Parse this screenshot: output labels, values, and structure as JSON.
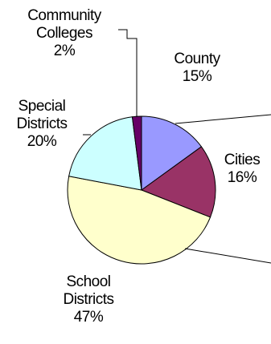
{
  "chart_data": {
    "type": "pie",
    "title": "",
    "slices": [
      {
        "name": "County",
        "name_lines": [
          "County"
        ],
        "value": 15,
        "value_label": "15%",
        "color": "#9999ff"
      },
      {
        "name": "Cities",
        "name_lines": [
          "Cities"
        ],
        "value": 16,
        "value_label": "16%",
        "color": "#993366"
      },
      {
        "name": "School Districts",
        "name_lines": [
          "School",
          "Districts"
        ],
        "value": 47,
        "value_label": "47%",
        "color": "#ffffcc"
      },
      {
        "name": "Special Districts",
        "name_lines": [
          "Special",
          "Districts"
        ],
        "value": 20,
        "value_label": "20%",
        "color": "#ccffff"
      },
      {
        "name": "Community Colleges",
        "name_lines": [
          "Community",
          "Colleges"
        ],
        "value": 2,
        "value_label": "2%",
        "color": "#660066"
      }
    ],
    "start_angle": "12 o'clock",
    "direction": "clockwise",
    "legend": "none",
    "labels": "outside with leader lines"
  }
}
